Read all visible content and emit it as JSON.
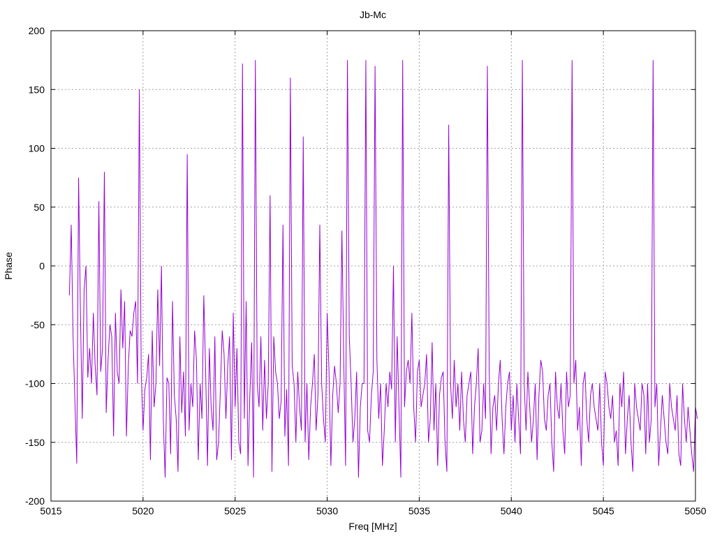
{
  "chart_data": {
    "type": "line",
    "title": "Jb-Mc",
    "xlabel": "Freq [MHz]",
    "ylabel": "Phase",
    "xlim": [
      5015,
      5050
    ],
    "ylim": [
      -200,
      200
    ],
    "xticks": [
      5015,
      5020,
      5025,
      5030,
      5035,
      5040,
      5045,
      5050
    ],
    "yticks": [
      -200,
      -150,
      -100,
      -50,
      0,
      50,
      100,
      150,
      200
    ],
    "grid": true,
    "series_color": "#9400d3",
    "series": [
      {
        "x_start": 5016.0,
        "x_step": 0.1,
        "values": [
          -25,
          35,
          -60,
          -115,
          -168,
          75,
          -40,
          -130,
          -20,
          0,
          -95,
          -70,
          -100,
          -40,
          -85,
          -110,
          55,
          -90,
          -70,
          80,
          -125,
          -80,
          -50,
          -60,
          -145,
          -40,
          -90,
          -100,
          -20,
          -70,
          -30,
          -145,
          -85,
          -55,
          -60,
          -40,
          -30,
          -100,
          150,
          -90,
          -140,
          -105,
          -95,
          -75,
          -165,
          -55,
          -120,
          -100,
          -20,
          -85,
          0,
          -130,
          -180,
          -95,
          -100,
          -160,
          -30,
          -110,
          -130,
          -175,
          -60,
          -125,
          -90,
          -145,
          95,
          -140,
          -100,
          -120,
          -55,
          -80,
          -165,
          -100,
          -130,
          -25,
          -90,
          -170,
          -70,
          -120,
          -140,
          -60,
          -165,
          -150,
          -105,
          -55,
          -75,
          -130,
          -85,
          -60,
          -165,
          -40,
          -120,
          -70,
          -150,
          -160,
          172,
          -130,
          -30,
          -170,
          -110,
          -65,
          -180,
          175,
          -100,
          -120,
          -60,
          -140,
          -80,
          -130,
          -100,
          60,
          -175,
          -60,
          -90,
          -100,
          -130,
          -115,
          35,
          -145,
          -105,
          -170,
          160,
          -85,
          -100,
          -150,
          -90,
          -120,
          -140,
          110,
          -150,
          -100,
          -165,
          -120,
          -100,
          -75,
          -140,
          -110,
          35,
          -100,
          -130,
          -150,
          -40,
          -90,
          -170,
          -110,
          -85,
          -100,
          -125,
          -100,
          30,
          -80,
          -170,
          175,
          -60,
          -100,
          -150,
          -130,
          -90,
          -180,
          -120,
          -100,
          -100,
          175,
          -140,
          -150,
          -110,
          -90,
          170,
          -80,
          -130,
          -100,
          -170,
          -140,
          -100,
          -120,
          -90,
          -105,
          0,
          -150,
          -60,
          -120,
          -180,
          175,
          -120,
          -90,
          -80,
          -100,
          -40,
          -120,
          -150,
          -90,
          -80,
          -120,
          -110,
          -100,
          -75,
          -150,
          -130,
          -65,
          -140,
          -100,
          -170,
          -110,
          -95,
          -90,
          -150,
          -175,
          120,
          -100,
          -130,
          -80,
          -120,
          -100,
          -140,
          -90,
          -130,
          -150,
          -110,
          -100,
          -90,
          -160,
          -120,
          -100,
          -70,
          -150,
          -140,
          -100,
          -130,
          170,
          -90,
          -160,
          -120,
          -110,
          -140,
          -100,
          -80,
          -130,
          -160,
          -120,
          -100,
          -90,
          -140,
          -110,
          -150,
          -100,
          -130,
          -160,
          175,
          -100,
          -140,
          -90,
          -120,
          -150,
          -130,
          -100,
          -165,
          -110,
          -80,
          -90,
          -130,
          -140,
          -110,
          -100,
          -150,
          -175,
          -90,
          -120,
          -130,
          -100,
          -140,
          -160,
          -90,
          -120,
          -110,
          175,
          -100,
          -80,
          -140,
          -120,
          -170,
          -100,
          -90,
          -130,
          -150,
          -110,
          -100,
          -120,
          -130,
          -140,
          -100,
          -150,
          -170,
          -90,
          -100,
          -120,
          -130,
          -110,
          -150,
          -140,
          -170,
          -100,
          -120,
          -90,
          -160,
          -130,
          -110,
          -150,
          -175,
          -100,
          -120,
          -130,
          -140,
          -100,
          -110,
          -160,
          -100,
          -150,
          -130,
          175,
          -120,
          -100,
          -170,
          -140,
          -110,
          -130,
          -150,
          -160,
          -100,
          -120,
          -130,
          -140,
          -110,
          -160,
          -170,
          -100,
          -130,
          -150,
          -120,
          -140,
          -160,
          -175,
          -120,
          -130
        ]
      }
    ]
  }
}
